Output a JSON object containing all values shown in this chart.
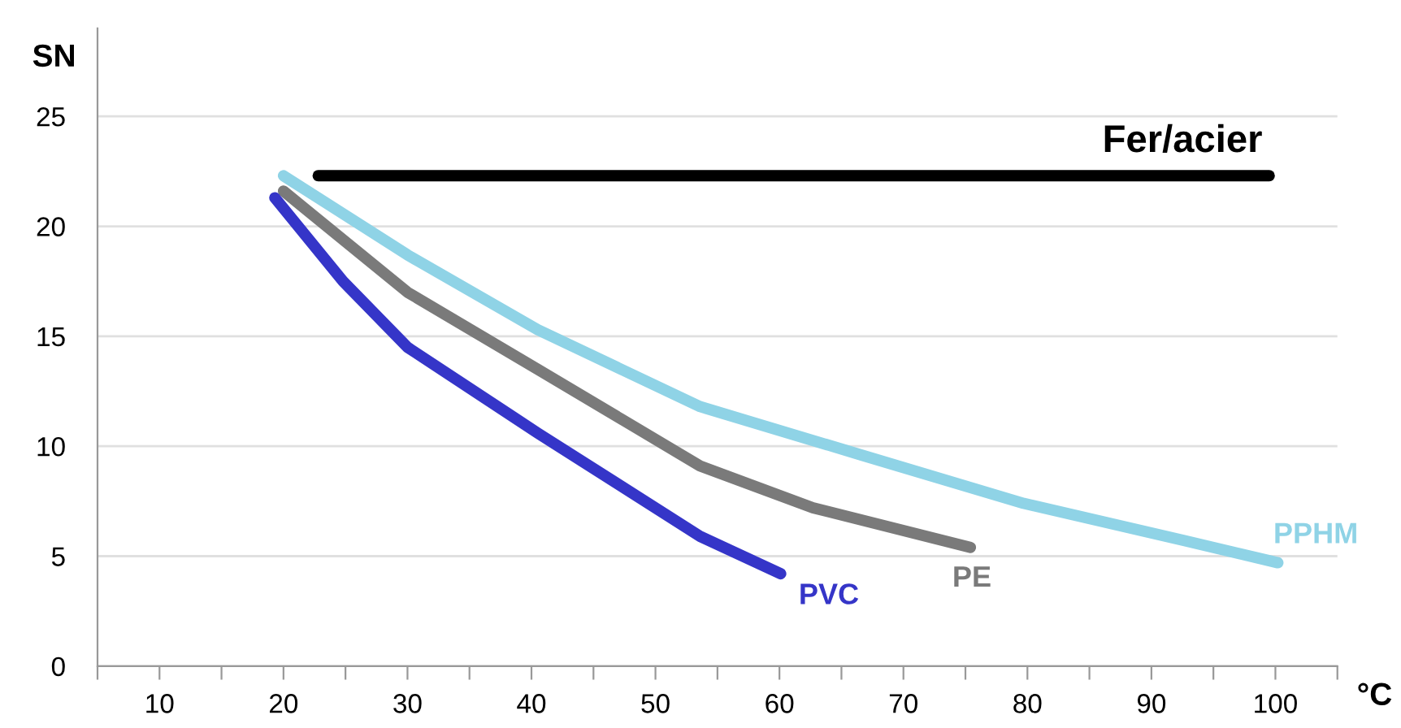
{
  "chart_data": {
    "type": "line",
    "xlabel": "°C",
    "ylabel": "SN",
    "xlim": [
      5,
      105
    ],
    "ylim": [
      0,
      29
    ],
    "xticks": [
      {
        "value": 5,
        "label": null
      },
      10,
      {
        "value": 15,
        "label": null
      },
      20,
      {
        "value": 25,
        "label": null
      },
      30,
      {
        "value": 35,
        "label": null
      },
      40,
      {
        "value": 45,
        "label": null
      },
      50,
      {
        "value": 55,
        "label": null
      },
      60,
      {
        "value": 65,
        "label": null
      },
      70,
      {
        "value": 75,
        "label": null
      },
      80,
      {
        "value": 85,
        "label": null
      },
      90,
      {
        "value": 95,
        "label": null
      },
      100,
      {
        "value": 105,
        "label": null
      }
    ],
    "yticks": [
      0,
      5,
      10,
      15,
      20,
      25
    ],
    "grid": "y",
    "legend": false,
    "marker": "none",
    "line_style": "solid",
    "series": [
      {
        "name": "Fer/acier",
        "color": "#000000",
        "x": [
          22.8,
          99.5
        ],
        "values": [
          22.3,
          22.3
        ]
      },
      {
        "name": "PPHM",
        "color": "#8fd3e6",
        "x": [
          20,
          30,
          40.5,
          53.6,
          66.6,
          79.7,
          92.7,
          100.2
        ],
        "values": [
          22.3,
          18.7,
          15.3,
          11.8,
          9.6,
          7.4,
          5.7,
          4.7
        ]
      },
      {
        "name": "PE",
        "color": "#7a7a7a",
        "x": [
          20,
          30,
          40.5,
          53.6,
          62.7,
          75.4
        ],
        "values": [
          21.6,
          17.0,
          13.5,
          9.1,
          7.2,
          5.4
        ]
      },
      {
        "name": "PVC",
        "color": "#3535c8",
        "x": [
          19.3,
          24.8,
          30,
          40.5,
          53.6,
          60.1
        ],
        "values": [
          21.3,
          17.5,
          14.5,
          10.6,
          5.9,
          4.2
        ]
      }
    ]
  }
}
